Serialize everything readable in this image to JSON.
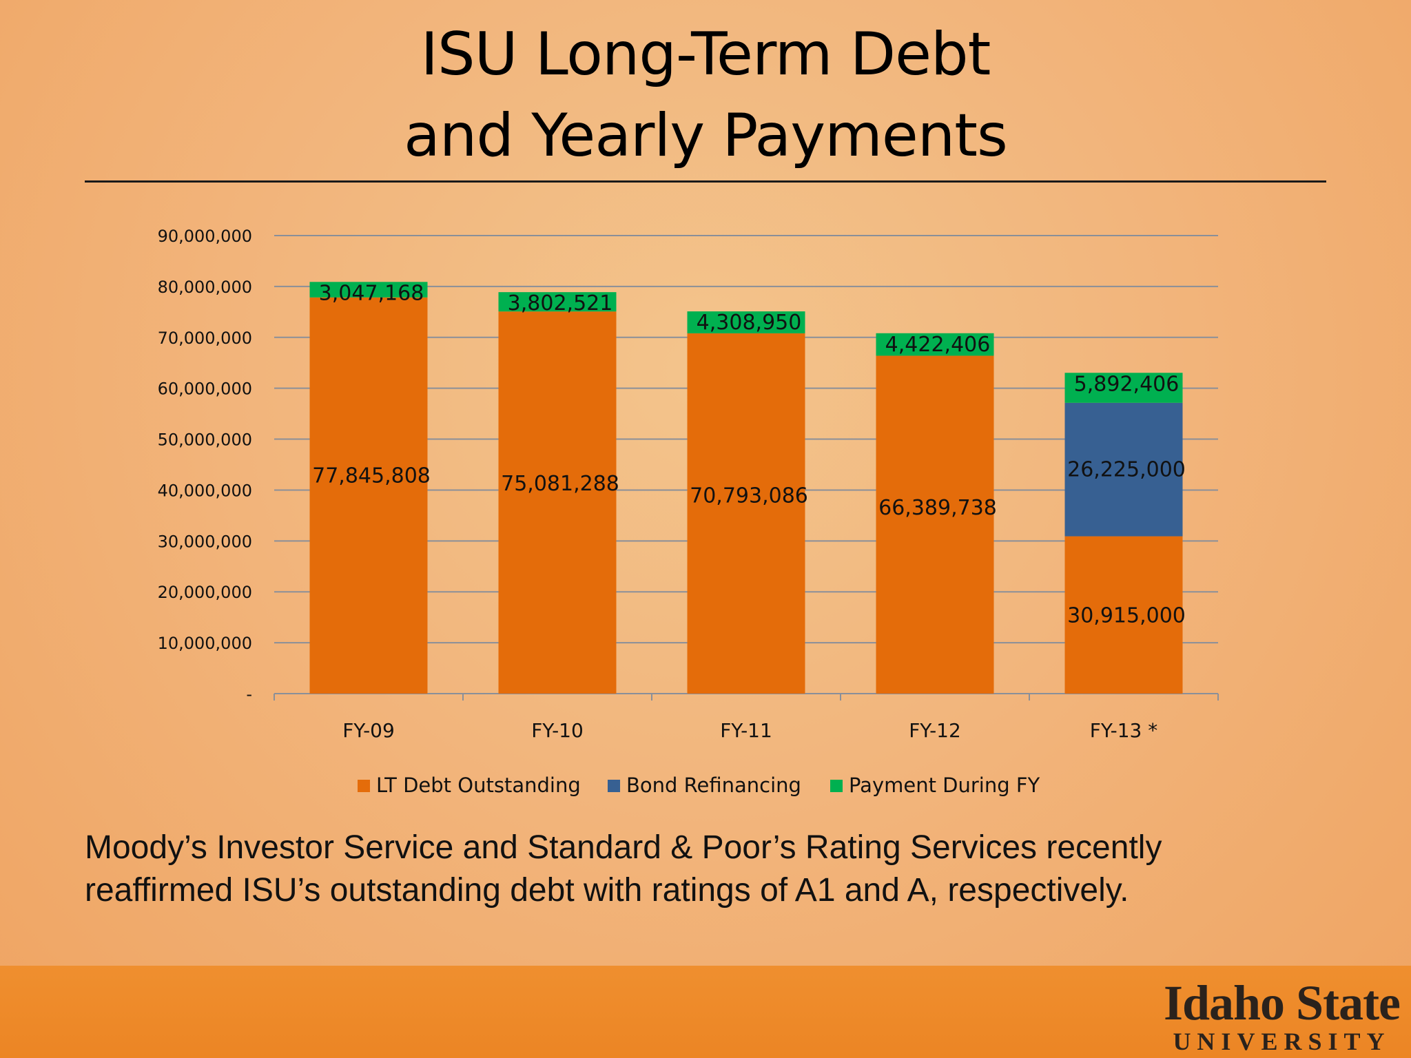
{
  "slide": {
    "title_line1": "ISU Long-Term Debt",
    "title_line2": "and Yearly Payments",
    "caption_line1": "Moody’s Investor Service and Standard & Poor’s Rating Services recently",
    "caption_line2": "reaffirmed ISU’s outstanding debt with ratings of A1 and A, respectively.",
    "logo_main": "Idaho State",
    "logo_sub": "UNIVERSITY"
  },
  "chart_data": {
    "type": "bar",
    "stacked": true,
    "categories": [
      "FY-09",
      "FY-10",
      "FY-11",
      "FY-12",
      "FY-13 *"
    ],
    "series": [
      {
        "name": "LT Debt Outstanding",
        "color": "#e46c0a",
        "values": [
          77845808,
          75081288,
          70793086,
          66389738,
          30915000
        ],
        "labels": [
          "77,845,808",
          "75,081,288",
          "70,793,086",
          "66,389,738",
          "30,915,000"
        ]
      },
      {
        "name": "Bond Refinancing",
        "color": "#376092",
        "values": [
          0,
          0,
          0,
          0,
          26225000
        ],
        "labels": [
          "",
          "",
          "",
          "",
          "26,225,000"
        ]
      },
      {
        "name": "Payment During FY",
        "color": "#00b050",
        "values": [
          3047168,
          3802521,
          4308950,
          4422406,
          5892406
        ],
        "labels": [
          "3,047,168",
          "3,802,521",
          "4,308,950",
          "4,422,406",
          "5,892,406"
        ]
      }
    ],
    "ylim": [
      0,
      90000000
    ],
    "yticks": [
      0,
      10000000,
      20000000,
      30000000,
      40000000,
      50000000,
      60000000,
      70000000,
      80000000,
      90000000
    ],
    "ytick_labels": [
      "-",
      "10,000,000",
      "20,000,000",
      "30,000,000",
      "40,000,000",
      "50,000,000",
      "60,000,000",
      "70,000,000",
      "80,000,000",
      "90,000,000"
    ],
    "grid": true,
    "legend_position": "bottom"
  }
}
